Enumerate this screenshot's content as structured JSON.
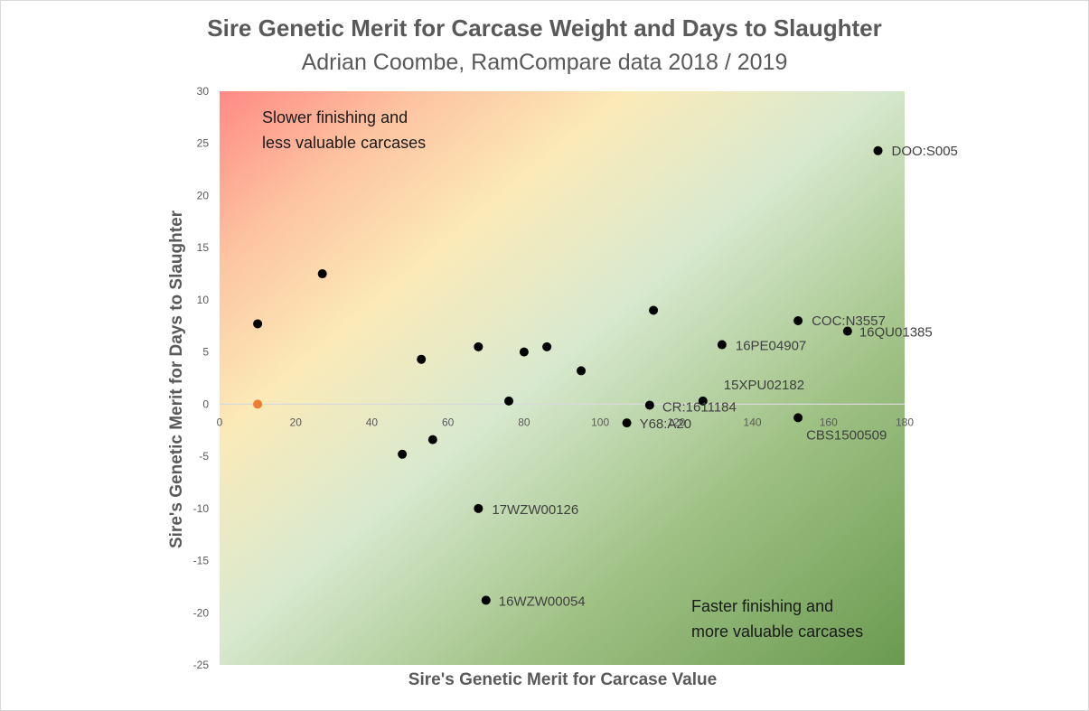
{
  "chart_data": {
    "type": "scatter",
    "title": "Sire Genetic Merit for Carcase Weight and Days to Slaughter",
    "subtitle": "Adrian Coombe, RamCompare data 2018 / 2019",
    "xlabel": "Sire's Genetic Merit for Carcase Value",
    "ylabel": "Sire's Genetic Merit for Days to Slaughter",
    "xlim": [
      0,
      180
    ],
    "ylim": [
      -25,
      30
    ],
    "x_ticks": [
      "0",
      "20",
      "40",
      "60",
      "80",
      "100",
      "120",
      "140",
      "160",
      "180"
    ],
    "y_ticks": [
      "30",
      "25",
      "20",
      "15",
      "10",
      "5",
      "0",
      "-5",
      "-10",
      "-15",
      "-20",
      "-25"
    ],
    "grid": false,
    "background": "diagonal gradient red (top-left) to yellow to green (bottom-right)",
    "annotations": {
      "top_left_line1": "Slower finishing and",
      "top_left_line2": "less valuable carcases",
      "bottom_right_line1": "Faster finishing and",
      "bottom_right_line2": "more valuable carcases"
    },
    "colors": {
      "point": "#000000",
      "highlight": "#ed7d31",
      "axis": "#d9d9d9",
      "text": "#595959"
    },
    "points": [
      {
        "x": 173,
        "y": 24.3,
        "label": "DOO:S005"
      },
      {
        "x": 10,
        "y": 7.7,
        "label": ""
      },
      {
        "x": 27,
        "y": 12.5,
        "label": ""
      },
      {
        "x": 53,
        "y": 4.3,
        "label": ""
      },
      {
        "x": 68,
        "y": 5.5,
        "label": ""
      },
      {
        "x": 80,
        "y": 5.0,
        "label": ""
      },
      {
        "x": 86,
        "y": 5.5,
        "label": ""
      },
      {
        "x": 95,
        "y": 3.2,
        "label": ""
      },
      {
        "x": 76,
        "y": 0.3,
        "label": ""
      },
      {
        "x": 114,
        "y": 9.0,
        "label": ""
      },
      {
        "x": 152,
        "y": 8.0,
        "label": "COC:N3557"
      },
      {
        "x": 165,
        "y": 7.0,
        "label": "16QU01385"
      },
      {
        "x": 132,
        "y": 5.7,
        "label": "16PE04907"
      },
      {
        "x": 127,
        "y": 0.3,
        "label": "15XPU02182"
      },
      {
        "x": 113,
        "y": -0.1,
        "label": "CR:1611184"
      },
      {
        "x": 107,
        "y": -1.8,
        "label": "Y68:A20"
      },
      {
        "x": 152,
        "y": -1.3,
        "label": "CBS1500509"
      },
      {
        "x": 48,
        "y": -4.8,
        "label": ""
      },
      {
        "x": 56,
        "y": -3.4,
        "label": ""
      },
      {
        "x": 68,
        "y": -10.0,
        "label": "17WZW00126"
      },
      {
        "x": 70,
        "y": -18.8,
        "label": "16WZW00054"
      },
      {
        "x": 10,
        "y": 0.0,
        "label": "",
        "highlight": true
      }
    ]
  }
}
